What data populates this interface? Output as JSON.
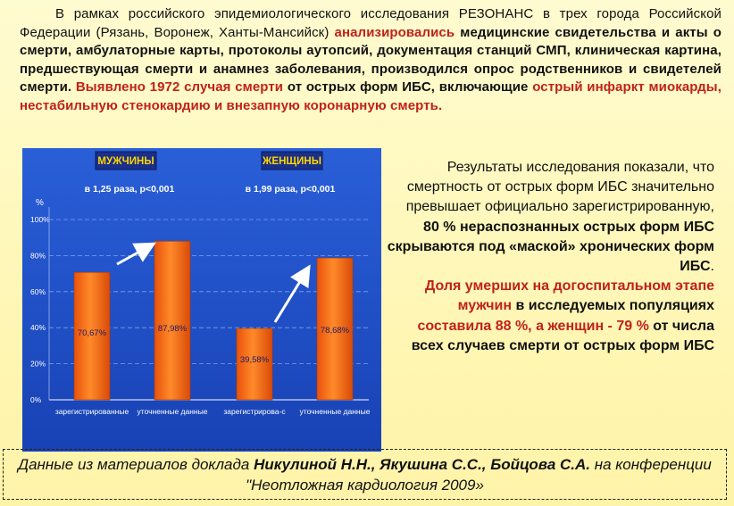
{
  "intro": {
    "p1": "В рамках российского эпидемиологического исследования РЕЗОНАНС в трех города Российской Федерации (Рязань, Воронеж, Ханты-Мансийск)",
    "p2": "анализировались",
    "p3": "медицинские свидетельства и акты о смерти, амбулаторные карты, протоколы аутопсий, документация станций СМП, клиническая картина, предшествующая смерти и анамнез заболевания, производился опрос родственников и свидетелей смерти.",
    "p4": "Выявлено 1972 случая смерти",
    "p5": "от острых форм ИБС, включающие",
    "p6": "острый инфаркт миокарды, нестабильную стенокардию и внезапную коронарную смерть."
  },
  "results": {
    "r1": "Результаты исследования показали, что смертность от острых форм ИБС значительно превышает официально зарегистрированную,",
    "r2": "80 % нераспознанных острых форм ИБС скрываются под «маской» хронических форм ИБС",
    "r2end": ".",
    "r3": "Доля умерших на догоспитальном этапе мужчин",
    "r4": "в исследуемых популяциях",
    "r5": "составила 88 %, а женщин - 79 %",
    "r6": "от числа всех случаев смерти от острых форм ИБС"
  },
  "footer": {
    "f1": "Данные из материалов доклада",
    "f2": "Никулиной Н.Н., Якушина С.С., Бойцова С.А.",
    "f3": "на конференции \"Неотложная кардиология 2009»"
  },
  "colors": {
    "chart_bg": "#1f4fc8",
    "bar": "#f07018",
    "label_box": "#1d3aa8",
    "arrow": "#ffffff"
  },
  "chart_data": {
    "type": "bar",
    "ylabel": "%",
    "ylim": [
      0,
      100
    ],
    "yticks": [
      "0%",
      "20%",
      "40%",
      "60%",
      "80%",
      "100%"
    ],
    "panels": [
      {
        "title": "МУЖЧИНЫ",
        "note": "в 1,25 раза, p<0,001",
        "categories": [
          "зарегистрированные",
          "уточненные данные"
        ],
        "values": [
          70.67,
          87.98
        ],
        "labels": [
          "70,67%",
          "87,98%"
        ]
      },
      {
        "title": "ЖЕНЩИНЫ",
        "note": "в 1,99 раза, p<0,001",
        "categories": [
          "зарегистрирова-с",
          "уточненные данные"
        ],
        "values": [
          39.58,
          78.68
        ],
        "labels": [
          "39,58%",
          "78,68%"
        ]
      }
    ]
  }
}
